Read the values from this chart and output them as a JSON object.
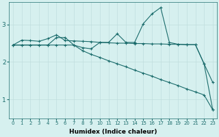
{
  "xlabel": "Humidex (Indice chaleur)",
  "ylabel": "",
  "background_color": "#d6f0ef",
  "line_color": "#1a6b6b",
  "grid_color": "#c0dede",
  "xlim": [
    -0.5,
    23.5
  ],
  "ylim": [
    0.5,
    3.6
  ],
  "yticks": [
    1,
    2,
    3
  ],
  "xticks": [
    0,
    1,
    2,
    3,
    4,
    5,
    6,
    7,
    8,
    9,
    10,
    11,
    12,
    13,
    14,
    15,
    16,
    17,
    18,
    19,
    20,
    21,
    22,
    23
  ],
  "line1_x": [
    0,
    1,
    2,
    3,
    4,
    5,
    6,
    7,
    8,
    9,
    10,
    11,
    12,
    13,
    14,
    15,
    16,
    17,
    18,
    19,
    20,
    21,
    22,
    23
  ],
  "line1_y": [
    2.45,
    2.58,
    2.57,
    2.55,
    2.62,
    2.72,
    2.57,
    2.56,
    2.55,
    2.54,
    2.52,
    2.51,
    2.5,
    2.5,
    2.49,
    2.49,
    2.48,
    2.48,
    2.47,
    2.47,
    2.46,
    2.46,
    1.95,
    1.45
  ],
  "line2_x": [
    0,
    1,
    2,
    3,
    4,
    5,
    6,
    7,
    8,
    9,
    10,
    11,
    12,
    13,
    14,
    15,
    16,
    17,
    18,
    19,
    20,
    21,
    22,
    23
  ],
  "line2_y": [
    2.45,
    2.45,
    2.45,
    2.45,
    2.45,
    2.65,
    2.65,
    2.45,
    2.38,
    2.35,
    2.52,
    2.52,
    2.75,
    2.52,
    2.52,
    3.02,
    3.28,
    3.45,
    2.52,
    2.47,
    2.46,
    2.46,
    1.95,
    0.72
  ],
  "line3_x": [
    0,
    1,
    2,
    3,
    4,
    5,
    6,
    7,
    8,
    9,
    10,
    11,
    12,
    13,
    14,
    15,
    16,
    17,
    18,
    19,
    20,
    21,
    22,
    23
  ],
  "line3_y": [
    2.45,
    2.45,
    2.45,
    2.45,
    2.45,
    2.45,
    2.45,
    2.45,
    2.3,
    2.2,
    2.12,
    2.03,
    1.95,
    1.87,
    1.78,
    1.7,
    1.62,
    1.53,
    1.45,
    1.37,
    1.28,
    1.2,
    1.12,
    0.72
  ]
}
